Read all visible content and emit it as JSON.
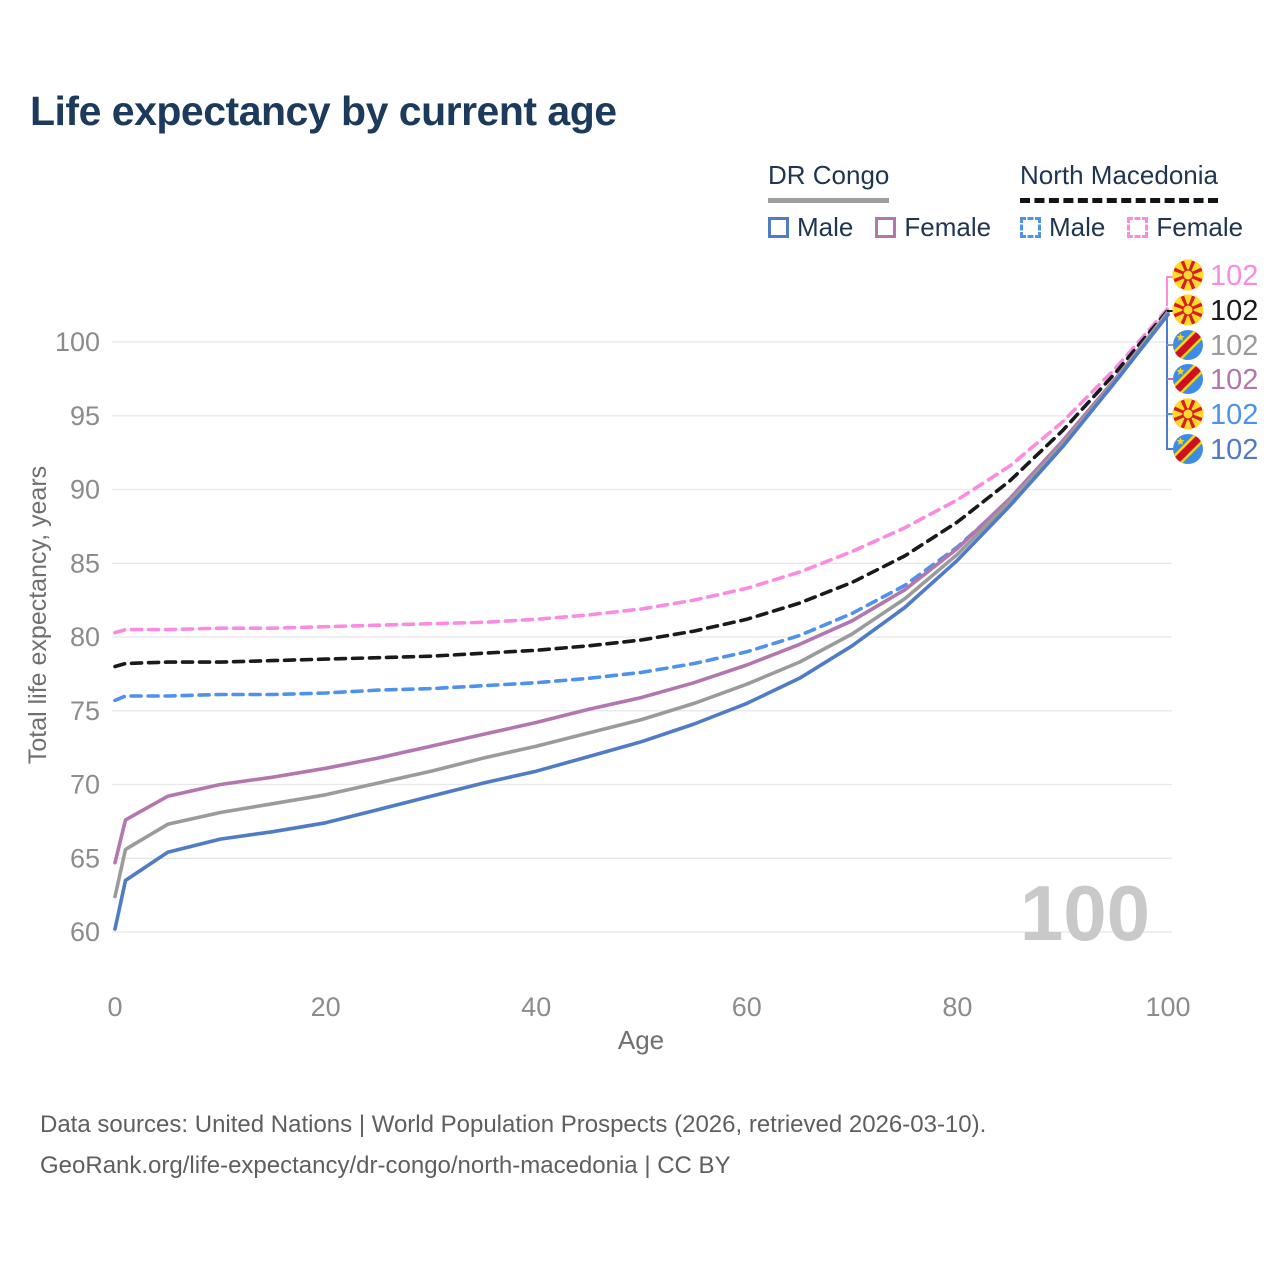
{
  "page": {
    "title": "Life expectancy by current age",
    "title_color": "#1c3a5c",
    "background": "#ffffff"
  },
  "legend": {
    "groups": [
      {
        "name": "DR Congo",
        "line_style": "solid",
        "rule_color": "#9e9e9e",
        "items": [
          {
            "label": "Male",
            "color": "#4f7bc7"
          },
          {
            "label": "Female",
            "color": "#b277af"
          }
        ]
      },
      {
        "name": "North Macedonia",
        "line_style": "dashed",
        "rule_color": "#141414",
        "items": [
          {
            "label": "Male",
            "color": "#4e92ec"
          },
          {
            "label": "Female",
            "color": "#fb8be1"
          }
        ]
      }
    ]
  },
  "footer": {
    "line1": "Data sources: United Nations | World Population Prospects (2026, retrieved 2026-03-10).",
    "line2": "GeoRank.org/life-expectancy/dr-congo/north-macedonia | CC BY"
  },
  "chart_data": {
    "type": "line",
    "title": "Life expectancy by current age",
    "xlabel": "Age",
    "ylabel": "Total life expectancy, years",
    "xlim": [
      0,
      100
    ],
    "ylim": [
      59,
      105
    ],
    "x_ticks": [
      0,
      20,
      40,
      60,
      80,
      100
    ],
    "y_ticks": [
      60,
      65,
      70,
      75,
      80,
      85,
      90,
      95,
      100
    ],
    "grid": "horizontal",
    "legend_position": "top-right",
    "age_watermark": "100",
    "x": [
      0,
      1,
      5,
      10,
      15,
      20,
      25,
      30,
      35,
      40,
      45,
      50,
      55,
      60,
      65,
      70,
      75,
      80,
      85,
      90,
      95,
      100
    ],
    "series": [
      {
        "id": "nm-female",
        "name": "North Macedonia Female",
        "country": "north-macedonia",
        "sex": "female",
        "dash": true,
        "color": "#fb8be1",
        "values": [
          80.3,
          80.5,
          80.5,
          80.6,
          80.6,
          80.7,
          80.8,
          80.9,
          81.0,
          81.2,
          81.5,
          81.9,
          82.5,
          83.3,
          84.4,
          85.8,
          87.4,
          89.3,
          91.6,
          94.6,
          98.2,
          102.3
        ]
      },
      {
        "id": "nm-total",
        "name": "North Macedonia Total",
        "country": "north-macedonia",
        "sex": "both",
        "dash": true,
        "color": "#1a1a1a",
        "values": [
          78.0,
          78.2,
          78.3,
          78.3,
          78.4,
          78.5,
          78.6,
          78.7,
          78.9,
          79.1,
          79.4,
          79.8,
          80.4,
          81.2,
          82.3,
          83.7,
          85.5,
          87.8,
          90.6,
          94.0,
          97.9,
          102.15
        ]
      },
      {
        "id": "nm-male",
        "name": "North Macedonia Male",
        "country": "north-macedonia",
        "sex": "male",
        "dash": true,
        "color": "#4e92ec",
        "values": [
          75.7,
          76.0,
          76.0,
          76.1,
          76.1,
          76.2,
          76.4,
          76.5,
          76.7,
          76.9,
          77.2,
          77.6,
          78.2,
          79.0,
          80.1,
          81.6,
          83.5,
          86.1,
          89.3,
          93.0,
          97.3,
          101.9
        ]
      },
      {
        "id": "drc-female",
        "name": "DR Congo Female",
        "country": "dr-congo",
        "sex": "female",
        "dash": false,
        "color": "#b277af",
        "values": [
          64.7,
          67.6,
          69.2,
          70.0,
          70.5,
          71.1,
          71.8,
          72.6,
          73.4,
          74.2,
          75.1,
          75.9,
          76.9,
          78.1,
          79.5,
          81.1,
          83.2,
          86.0,
          89.4,
          93.3,
          97.5,
          102.0
        ]
      },
      {
        "id": "drc-total",
        "name": "DR Congo Total",
        "country": "dr-congo",
        "sex": "both",
        "dash": false,
        "color": "#9b9b9b",
        "values": [
          62.4,
          65.6,
          67.3,
          68.1,
          68.7,
          69.3,
          70.1,
          70.9,
          71.8,
          72.6,
          73.5,
          74.4,
          75.5,
          76.8,
          78.3,
          80.2,
          82.6,
          85.6,
          89.2,
          93.1,
          97.4,
          102.05
        ]
      },
      {
        "id": "drc-male",
        "name": "DR Congo Male",
        "country": "dr-congo",
        "sex": "male",
        "dash": false,
        "color": "#4f7bc7",
        "values": [
          60.2,
          63.5,
          65.4,
          66.3,
          66.8,
          67.4,
          68.3,
          69.2,
          70.1,
          70.9,
          71.9,
          72.9,
          74.1,
          75.5,
          77.2,
          79.4,
          82.0,
          85.2,
          88.9,
          92.9,
          97.3,
          101.85
        ]
      }
    ],
    "end_labels": [
      {
        "series": "North Macedonia Female",
        "flag": "north-macedonia",
        "text": "102",
        "color": "#fb8be1"
      },
      {
        "series": "North Macedonia Total",
        "flag": "north-macedonia",
        "text": "102",
        "color": "#1a1a1a"
      },
      {
        "series": "DR Congo Total",
        "flag": "dr-congo",
        "text": "102",
        "color": "#9b9b9b"
      },
      {
        "series": "DR Congo Female",
        "flag": "dr-congo",
        "text": "102",
        "color": "#b277af"
      },
      {
        "series": "North Macedonia Male",
        "flag": "north-macedonia",
        "text": "102",
        "color": "#4e92ec"
      },
      {
        "series": "DR Congo Male",
        "flag": "dr-congo",
        "text": "102",
        "color": "#4f7bc7"
      }
    ]
  }
}
